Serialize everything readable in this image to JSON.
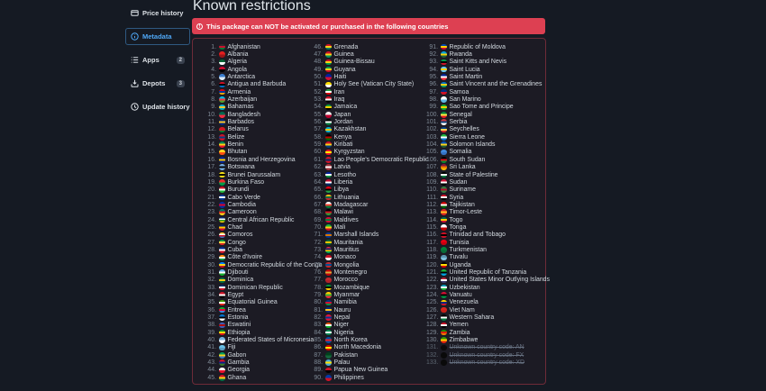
{
  "sidebar": {
    "items": [
      {
        "id": "price-history",
        "label": "Price history",
        "icon": "price-history-icon",
        "active": false,
        "badge": null
      },
      {
        "id": "metadata",
        "label": "Metadata",
        "icon": "metadata-icon",
        "active": true,
        "badge": null
      },
      {
        "id": "apps",
        "label": "Apps",
        "icon": "apps-icon",
        "active": false,
        "badge": "2"
      },
      {
        "id": "depots",
        "label": "Depots",
        "icon": "depots-icon",
        "active": false,
        "badge": "3"
      },
      {
        "id": "update-history",
        "label": "Update history",
        "icon": "update-history-icon",
        "active": false,
        "badge": null
      }
    ]
  },
  "main": {
    "title": "Known restrictions",
    "alert_text": "This package can NOT be activated or purchased in the following countries",
    "alert_icon": "exclamation-circle-icon"
  },
  "colors": {
    "background": "#151a23",
    "accent_blue": "#4fa7f5",
    "alert_bg": "#dd4052",
    "box_border": "#6e2b38",
    "number_gray": "#7f8a96",
    "text_light": "#d3dae0"
  },
  "columns": [
    45,
    45,
    43
  ],
  "countries": [
    [
      1,
      "Afghanistan",
      "#2c2c2c|#c8102e|#007a36"
    ],
    [
      2,
      "Albania",
      "#e41e20|#9e1418"
    ],
    [
      3,
      "Algeria",
      "#006233|#ffffff"
    ],
    [
      4,
      "Angola",
      "#cc092f|#000000"
    ],
    [
      5,
      "Antarctica",
      "#3a7dce|#dce9f5"
    ],
    [
      6,
      "Antigua and Barbuda",
      "#ce1126|#000000|#0072c6"
    ],
    [
      7,
      "Armenia",
      "#d90012|#0033a0|#f2a800"
    ],
    [
      8,
      "Azerbaijan",
      "#00b9e4|#ef3340|#509e2f"
    ],
    [
      9,
      "Bahamas",
      "#00abc9|#ffc72c|#00abc9"
    ],
    [
      10,
      "Bangladesh",
      "#006a4e|#f42a41"
    ],
    [
      11,
      "Barbados",
      "#00267f|#ffc726|#00267f"
    ],
    [
      12,
      "Belarus",
      "#ce1720|#ce1720|#007c30"
    ],
    [
      13,
      "Belize",
      "#ce1126|#003f87|#ce1126"
    ],
    [
      14,
      "Benin",
      "#008751|#fcd116|#e8112d"
    ],
    [
      15,
      "Bhutan",
      "#ffd520|#ff4e12"
    ],
    [
      16,
      "Bosnia and Herzegovina",
      "#002395|#fecb00|#002395"
    ],
    [
      17,
      "Botswana",
      "#75aadb|#000000|#75aadb"
    ],
    [
      18,
      "Brunei Darussalam",
      "#f7e017|#000000|#f7e017"
    ],
    [
      19,
      "Burkina Faso",
      "#ef2b2d|#009e49"
    ],
    [
      20,
      "Burundi",
      "#ce1126|#ffffff|#1eb53a"
    ],
    [
      21,
      "Cabo Verde",
      "#003893|#ffffff|#003893"
    ],
    [
      22,
      "Cambodia",
      "#032ea1|#e00025|#032ea1"
    ],
    [
      23,
      "Cameroon",
      "#007a5e|#ce1126|#fcd116"
    ],
    [
      24,
      "Central African Republic",
      "#003082|#ffffff|#289728|#ffce00"
    ],
    [
      25,
      "Chad",
      "#002664|#fecb00|#c60c30"
    ],
    [
      26,
      "Comoros",
      "#ffc61e|#ffffff|#ce1126|#3a75c4"
    ],
    [
      27,
      "Congo",
      "#009543|#fbde4a|#dc241f"
    ],
    [
      28,
      "Cuba",
      "#002a8f|#ffffff|#cf142b"
    ],
    [
      29,
      "Côte d'Ivoire",
      "#ff8200|#ffffff|#009a44"
    ],
    [
      30,
      "Democratic Republic of the Congo",
      "#007fff|#f7d618|#ce1021"
    ],
    [
      31,
      "Djibouti",
      "#6ab2e7|#ffffff|#12ad2b"
    ],
    [
      32,
      "Dominica",
      "#006b3f|#fcd116|#006b3f"
    ],
    [
      33,
      "Dominican Republic",
      "#002d62|#ffffff|#ce1126"
    ],
    [
      34,
      "Egypt",
      "#ce1126|#ffffff|#000000"
    ],
    [
      35,
      "Equatorial Guinea",
      "#3e9a00|#ffffff|#e32118"
    ],
    [
      36,
      "Eritrea",
      "#12ad2b|#ea0437|#4189dd"
    ],
    [
      37,
      "Estonia",
      "#0072ce|#000000|#ffffff"
    ],
    [
      38,
      "Eswatini",
      "#3e5eb9|#b10c0c|#3e5eb9"
    ],
    [
      39,
      "Ethiopia",
      "#078930|#fcdd09|#da121a"
    ],
    [
      40,
      "Federated States of Micronesia",
      "#75b2dd|#ffffff"
    ],
    [
      41,
      "Fiji",
      "#68bfe5|#5a9fc4"
    ],
    [
      42,
      "Gabon",
      "#009e60|#fcd116|#3a75c4"
    ],
    [
      43,
      "Gambia",
      "#ce1126|#0c1c8c|#3a7728"
    ],
    [
      44,
      "Georgia",
      "#ffffff|#e8112d"
    ],
    [
      45,
      "Ghana",
      "#ce1126|#fcd116|#006b3f"
    ],
    [
      46,
      "Grenada",
      "#ce1126|#fcd116|#007a5e"
    ],
    [
      47,
      "Guinea",
      "#ce1126|#fcd116|#009460"
    ],
    [
      48,
      "Guinea-Bissau",
      "#ce1126|#fcd116|#009e49"
    ],
    [
      49,
      "Guyana",
      "#009e49|#fcd116|#ce1126"
    ],
    [
      50,
      "Haiti",
      "#00209f|#d21034"
    ],
    [
      51,
      "Holy See (Vatican City State)",
      "#ffe000|#ffffff"
    ],
    [
      52,
      "Iran",
      "#239f40|#ffffff|#da0000"
    ],
    [
      53,
      "Iraq",
      "#ce1126|#ffffff|#000000"
    ],
    [
      54,
      "Jamaica",
      "#009b3a|#fed100|#000000"
    ],
    [
      55,
      "Japan",
      "#eeeeee|#bc002d"
    ],
    [
      56,
      "Jordan",
      "#000000|#ffffff|#007a3d"
    ],
    [
      57,
      "Kazakhstan",
      "#00afca|#fec50c|#00afca"
    ],
    [
      58,
      "Kenya",
      "#000000|#bb0000|#006600"
    ],
    [
      59,
      "Kiribati",
      "#ce1126|#fcd116|#003f87"
    ],
    [
      60,
      "Kyrgyzstan",
      "#e8112d|#ffef00|#e8112d"
    ],
    [
      61,
      "Lao People's Democratic Republic",
      "#ce1126|#002868|#ce1126"
    ],
    [
      62,
      "Latvia",
      "#9e3039|#ffffff|#9e3039"
    ],
    [
      63,
      "Lesotho",
      "#00209f|#ffffff|#009543"
    ],
    [
      64,
      "Liberia",
      "#bf0a30|#ffffff|#002868"
    ],
    [
      65,
      "Libya",
      "#e70013|#000000|#239e46"
    ],
    [
      66,
      "Lithuania",
      "#fdb913|#006a44|#c1272d"
    ],
    [
      67,
      "Madagascar",
      "#ffffff|#fc3d32|#007e3a"
    ],
    [
      68,
      "Malawi",
      "#000000|#ce1126|#339e35"
    ],
    [
      69,
      "Maldives",
      "#d21034|#007e3a|#d21034"
    ],
    [
      70,
      "Mali",
      "#14b53a|#fcd116|#ce1126"
    ],
    [
      71,
      "Marshall Islands",
      "#003893|#dd7500|#003893"
    ],
    [
      72,
      "Mauritania",
      "#006233|#ffc400|#006233"
    ],
    [
      73,
      "Mauritius",
      "#ea2839|#1a206d|#ffd500|#00a551"
    ],
    [
      74,
      "Monaco",
      "#ce1126|#ffffff"
    ],
    [
      75,
      "Mongolia",
      "#c4272f|#015197|#c4272f"
    ],
    [
      76,
      "Montenegro",
      "#c40308|#d3ae3b|#c40308"
    ],
    [
      77,
      "Morocco",
      "#c1272d|#b02228"
    ],
    [
      78,
      "Mozambique",
      "#009639|#000000|#fecb00"
    ],
    [
      79,
      "Myanmar",
      "#fecb00|#34b233|#ea2839"
    ],
    [
      80,
      "Namibia",
      "#003580|#d21034|#009543"
    ],
    [
      81,
      "Nauru",
      "#002b7f|#ffc61e|#002b7f"
    ],
    [
      82,
      "Nepal",
      "#dc143c|#003893|#dc143c"
    ],
    [
      83,
      "Niger",
      "#e05206|#ffffff|#0db02b"
    ],
    [
      84,
      "Nigeria",
      "#008751|#ffffff|#008751"
    ],
    [
      85,
      "North Korea",
      "#024fa2|#ed1c27|#024fa2"
    ],
    [
      86,
      "North Macedonia",
      "#d20000|#ffe600|#d20000"
    ],
    [
      87,
      "Pakistan",
      "#01411c|#14663a"
    ],
    [
      88,
      "Palau",
      "#4aadd6|#ffde00|#4aadd6"
    ],
    [
      89,
      "Papua New Guinea",
      "#ce1126|#000000"
    ],
    [
      90,
      "Philippines",
      "#0038a8|#ce1126"
    ],
    [
      91,
      "Republic of Moldova",
      "#0046ae|#ffd200|#cc092f"
    ],
    [
      92,
      "Rwanda",
      "#00a1de|#fad201|#20603d"
    ],
    [
      93,
      "Saint Kitts and Nevis",
      "#009e49|#000000|#ce1126"
    ],
    [
      94,
      "Saint Lucia",
      "#66ccff|#fcd116|#66ccff"
    ],
    [
      95,
      "Saint Martin",
      "#002395|#ffffff|#ed2939"
    ],
    [
      96,
      "Saint Vincent and the Grenadines",
      "#0072c6|#fcd116|#009e60"
    ],
    [
      97,
      "Samoa",
      "#002b7f|#ce1126"
    ],
    [
      98,
      "San Marino",
      "#ffffff|#5eb6e4"
    ],
    [
      99,
      "Sao Tome and Principe",
      "#12ad2b|#ffce00|#12ad2b"
    ],
    [
      100,
      "Senegal",
      "#00853f|#fdef42|#e31b23"
    ],
    [
      101,
      "Serbia",
      "#c6363c|#0c4076|#ffffff"
    ],
    [
      102,
      "Seychelles",
      "#003f87|#fcd856|#d62828"
    ],
    [
      103,
      "Sierra Leone",
      "#1eb53a|#ffffff|#0072c6"
    ],
    [
      104,
      "Solomon Islands",
      "#0051ba|#fcd116|#215b33"
    ],
    [
      105,
      "Somalia",
      "#4189dd|#3572c4"
    ],
    [
      106,
      "South Sudan",
      "#000000|#da121a|#078930"
    ],
    [
      107,
      "Sri Lanka",
      "#8d153a|#eb7400|#ffb700"
    ],
    [
      108,
      "State of Palestine",
      "#000000|#ffffff|#007a3d"
    ],
    [
      109,
      "Sudan",
      "#d21034|#ffffff|#000000"
    ],
    [
      110,
      "Suriname",
      "#377e3f|#b40a2d|#377e3f"
    ],
    [
      111,
      "Syria",
      "#ce1126|#ffffff|#000000"
    ],
    [
      112,
      "Tajikistan",
      "#cc0000|#ffffff|#006600"
    ],
    [
      113,
      "Timor-Leste",
      "#dc241f|#ffc726|#dc241f"
    ],
    [
      114,
      "Togo",
      "#006a4e|#ffce00|#d21034"
    ],
    [
      115,
      "Tonga",
      "#ffffff|#c10000"
    ],
    [
      116,
      "Trinidad and Tobago",
      "#ce1126|#000000|#ce1126"
    ],
    [
      117,
      "Tunisia",
      "#e70013|#c9000f"
    ],
    [
      118,
      "Turkmenistan",
      "#00843d|#0a6b38"
    ],
    [
      119,
      "Tuvalu",
      "#5b97b1|#7fc2de"
    ],
    [
      120,
      "Uganda",
      "#000000|#fcdc04|#d90000"
    ],
    [
      121,
      "United Republic of Tanzania",
      "#1eb53a|#000000|#00a3dd"
    ],
    [
      122,
      "United States Minor Outlying Islands",
      "#b22234|#ffffff|#3c3b6e"
    ],
    [
      123,
      "Uzbekistan",
      "#0099b5|#ffffff|#1eb53a"
    ],
    [
      124,
      "Vanuatu",
      "#d21034|#000000|#009543"
    ],
    [
      125,
      "Venezuela",
      "#ffcc00|#00247d|#cf142b"
    ],
    [
      126,
      "Viet Nam",
      "#da251d|#c92018"
    ],
    [
      127,
      "Western Sahara",
      "#000000|#ffffff|#007a3d"
    ],
    [
      128,
      "Yemen",
      "#ce1126|#ffffff|#000000"
    ],
    [
      129,
      "Zambia",
      "#198a00|#de2010|#ef7d00"
    ],
    [
      130,
      "Zimbabwe",
      "#319400|#ffd200|#de2010"
    ],
    [
      131,
      "Unknown country code: AN",
      "#0a0a0a",
      true
    ],
    [
      132,
      "Unknown country code: FX",
      "#0a0a0a",
      true
    ],
    [
      133,
      "Unknown country code: XD",
      "#0a0a0a",
      true
    ]
  ]
}
